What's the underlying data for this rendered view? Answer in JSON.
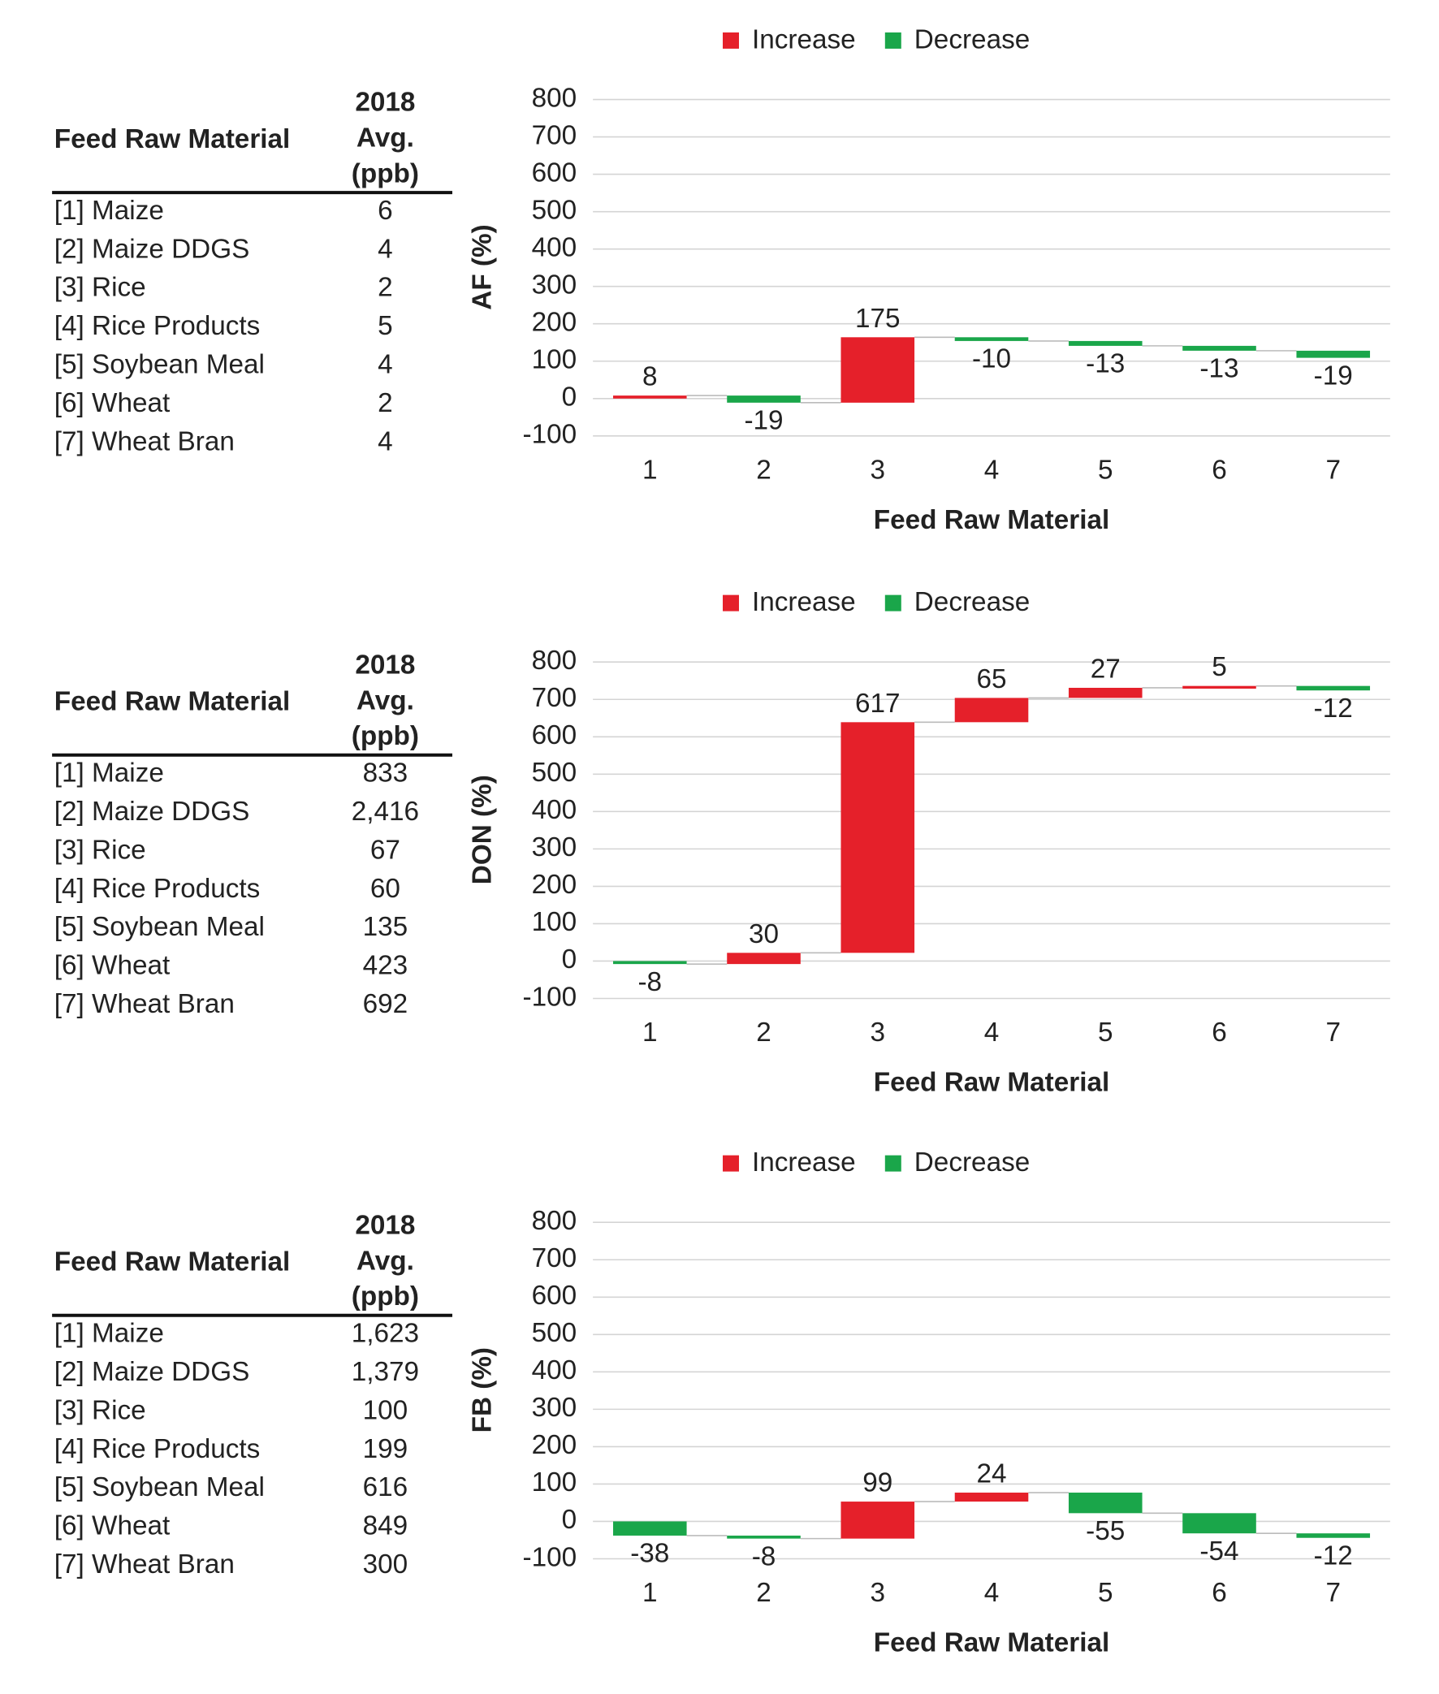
{
  "tables": [
    {
      "header": [
        "Feed Raw Material",
        [
          "2018",
          "Avg.",
          "(ppb)"
        ]
      ],
      "rows": [
        [
          "[1] Maize",
          "6"
        ],
        [
          "[2] Maize DDGS",
          "4"
        ],
        [
          "[3] Rice",
          "2"
        ],
        [
          "[4] Rice Products",
          "5"
        ],
        [
          "[5] Soybean Meal",
          "4"
        ],
        [
          "[6] Wheat",
          "2"
        ],
        [
          "[7] Wheat Bran",
          "4"
        ]
      ]
    },
    {
      "header": [
        "Feed Raw Material",
        [
          "2018",
          "Avg.",
          "(ppb)"
        ]
      ],
      "rows": [
        [
          "[1] Maize",
          "833"
        ],
        [
          "[2] Maize DDGS",
          "2,416"
        ],
        [
          "[3] Rice",
          "67"
        ],
        [
          "[4] Rice Products",
          "60"
        ],
        [
          "[5] Soybean Meal",
          "135"
        ],
        [
          "[6] Wheat",
          "423"
        ],
        [
          "[7] Wheat Bran",
          "692"
        ]
      ]
    },
    {
      "header": [
        "Feed Raw Material",
        [
          "2018",
          "Avg.",
          "(ppb)"
        ]
      ],
      "rows": [
        [
          "[1] Maize",
          "1,623"
        ],
        [
          "[2] Maize DDGS",
          "1,379"
        ],
        [
          "[3] Rice",
          "100"
        ],
        [
          "[4] Rice Products",
          "199"
        ],
        [
          "[5] Soybean Meal",
          "616"
        ],
        [
          "[6] Wheat",
          "849"
        ],
        [
          "[7] Wheat Bran",
          "300"
        ]
      ]
    }
  ],
  "chart_data": [
    {
      "type": "waterfall",
      "ylabel": "AF (%)",
      "xlabel": "Feed Raw Material",
      "categories": [
        "1",
        "2",
        "3",
        "4",
        "5",
        "6",
        "7"
      ],
      "values": [
        8,
        -19,
        175,
        -10,
        -13,
        -13,
        -19
      ],
      "legend": [
        {
          "name": "Increase",
          "color": "#e5202a"
        },
        {
          "name": "Decrease",
          "color": "#1aa64a"
        }
      ],
      "ylim": [
        -100,
        800
      ],
      "yticks": [
        -100,
        0,
        100,
        200,
        300,
        400,
        500,
        600,
        700,
        800
      ],
      "grid": true
    },
    {
      "type": "waterfall",
      "ylabel": "DON (%)",
      "xlabel": "Feed Raw Material",
      "categories": [
        "1",
        "2",
        "3",
        "4",
        "5",
        "6",
        "7"
      ],
      "values": [
        -8,
        30,
        617,
        65,
        27,
        5,
        -12
      ],
      "legend": [
        {
          "name": "Increase",
          "color": "#e5202a"
        },
        {
          "name": "Decrease",
          "color": "#1aa64a"
        }
      ],
      "ylim": [
        -100,
        800
      ],
      "yticks": [
        -100,
        0,
        100,
        200,
        300,
        400,
        500,
        600,
        700,
        800
      ],
      "grid": true
    },
    {
      "type": "waterfall",
      "ylabel": "FB (%)",
      "xlabel": "Feed Raw Material",
      "categories": [
        "1",
        "2",
        "3",
        "4",
        "5",
        "6",
        "7"
      ],
      "values": [
        -38,
        -8,
        99,
        24,
        -55,
        -54,
        -12
      ],
      "legend": [
        {
          "name": "Increase",
          "color": "#e5202a"
        },
        {
          "name": "Decrease",
          "color": "#1aa64a"
        }
      ],
      "ylim": [
        -100,
        800
      ],
      "yticks": [
        -100,
        0,
        100,
        200,
        300,
        400,
        500,
        600,
        700,
        800
      ],
      "grid": true
    }
  ]
}
